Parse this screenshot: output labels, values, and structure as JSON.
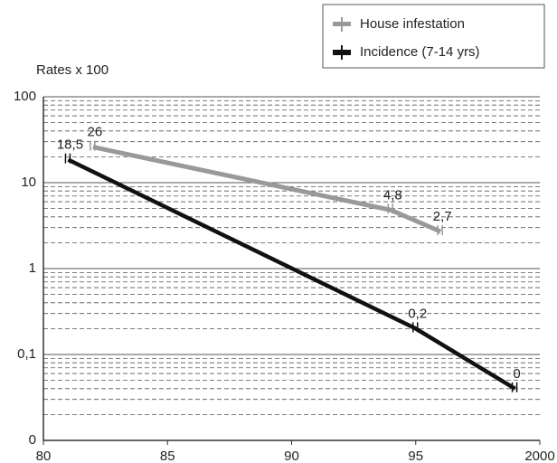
{
  "chart_data": {
    "type": "line",
    "y_label": "Rates x 100",
    "log_y": true,
    "grid": true,
    "xlim": [
      1980,
      2000
    ],
    "xticks": [
      {
        "value": 1980,
        "label": "80"
      },
      {
        "value": 1985,
        "label": "85"
      },
      {
        "value": 1990,
        "label": "90"
      },
      {
        "value": 1995,
        "label": "95"
      },
      {
        "value": 2000,
        "label": "2000"
      }
    ],
    "ylim": [
      0.01,
      100
    ],
    "yticks": [
      {
        "value": 0.01,
        "label": "0"
      },
      {
        "value": 0.1,
        "label": "0,1"
      },
      1,
      10,
      100
    ],
    "legend_position": "top-right",
    "series": [
      {
        "name": "House infestation",
        "color": "#999999",
        "x": [
          1982,
          1994,
          1996
        ],
        "values": [
          26,
          4.8,
          2.7
        ],
        "value_labels": [
          "26",
          "4,8",
          "2,7"
        ]
      },
      {
        "name": "Incidence (7-14 yrs)",
        "color": "#111111",
        "x": [
          1981,
          1995,
          1999
        ],
        "values": [
          18.5,
          0.2,
          0.04
        ],
        "value_labels": [
          "18,5",
          "0,2",
          "0"
        ]
      }
    ]
  }
}
